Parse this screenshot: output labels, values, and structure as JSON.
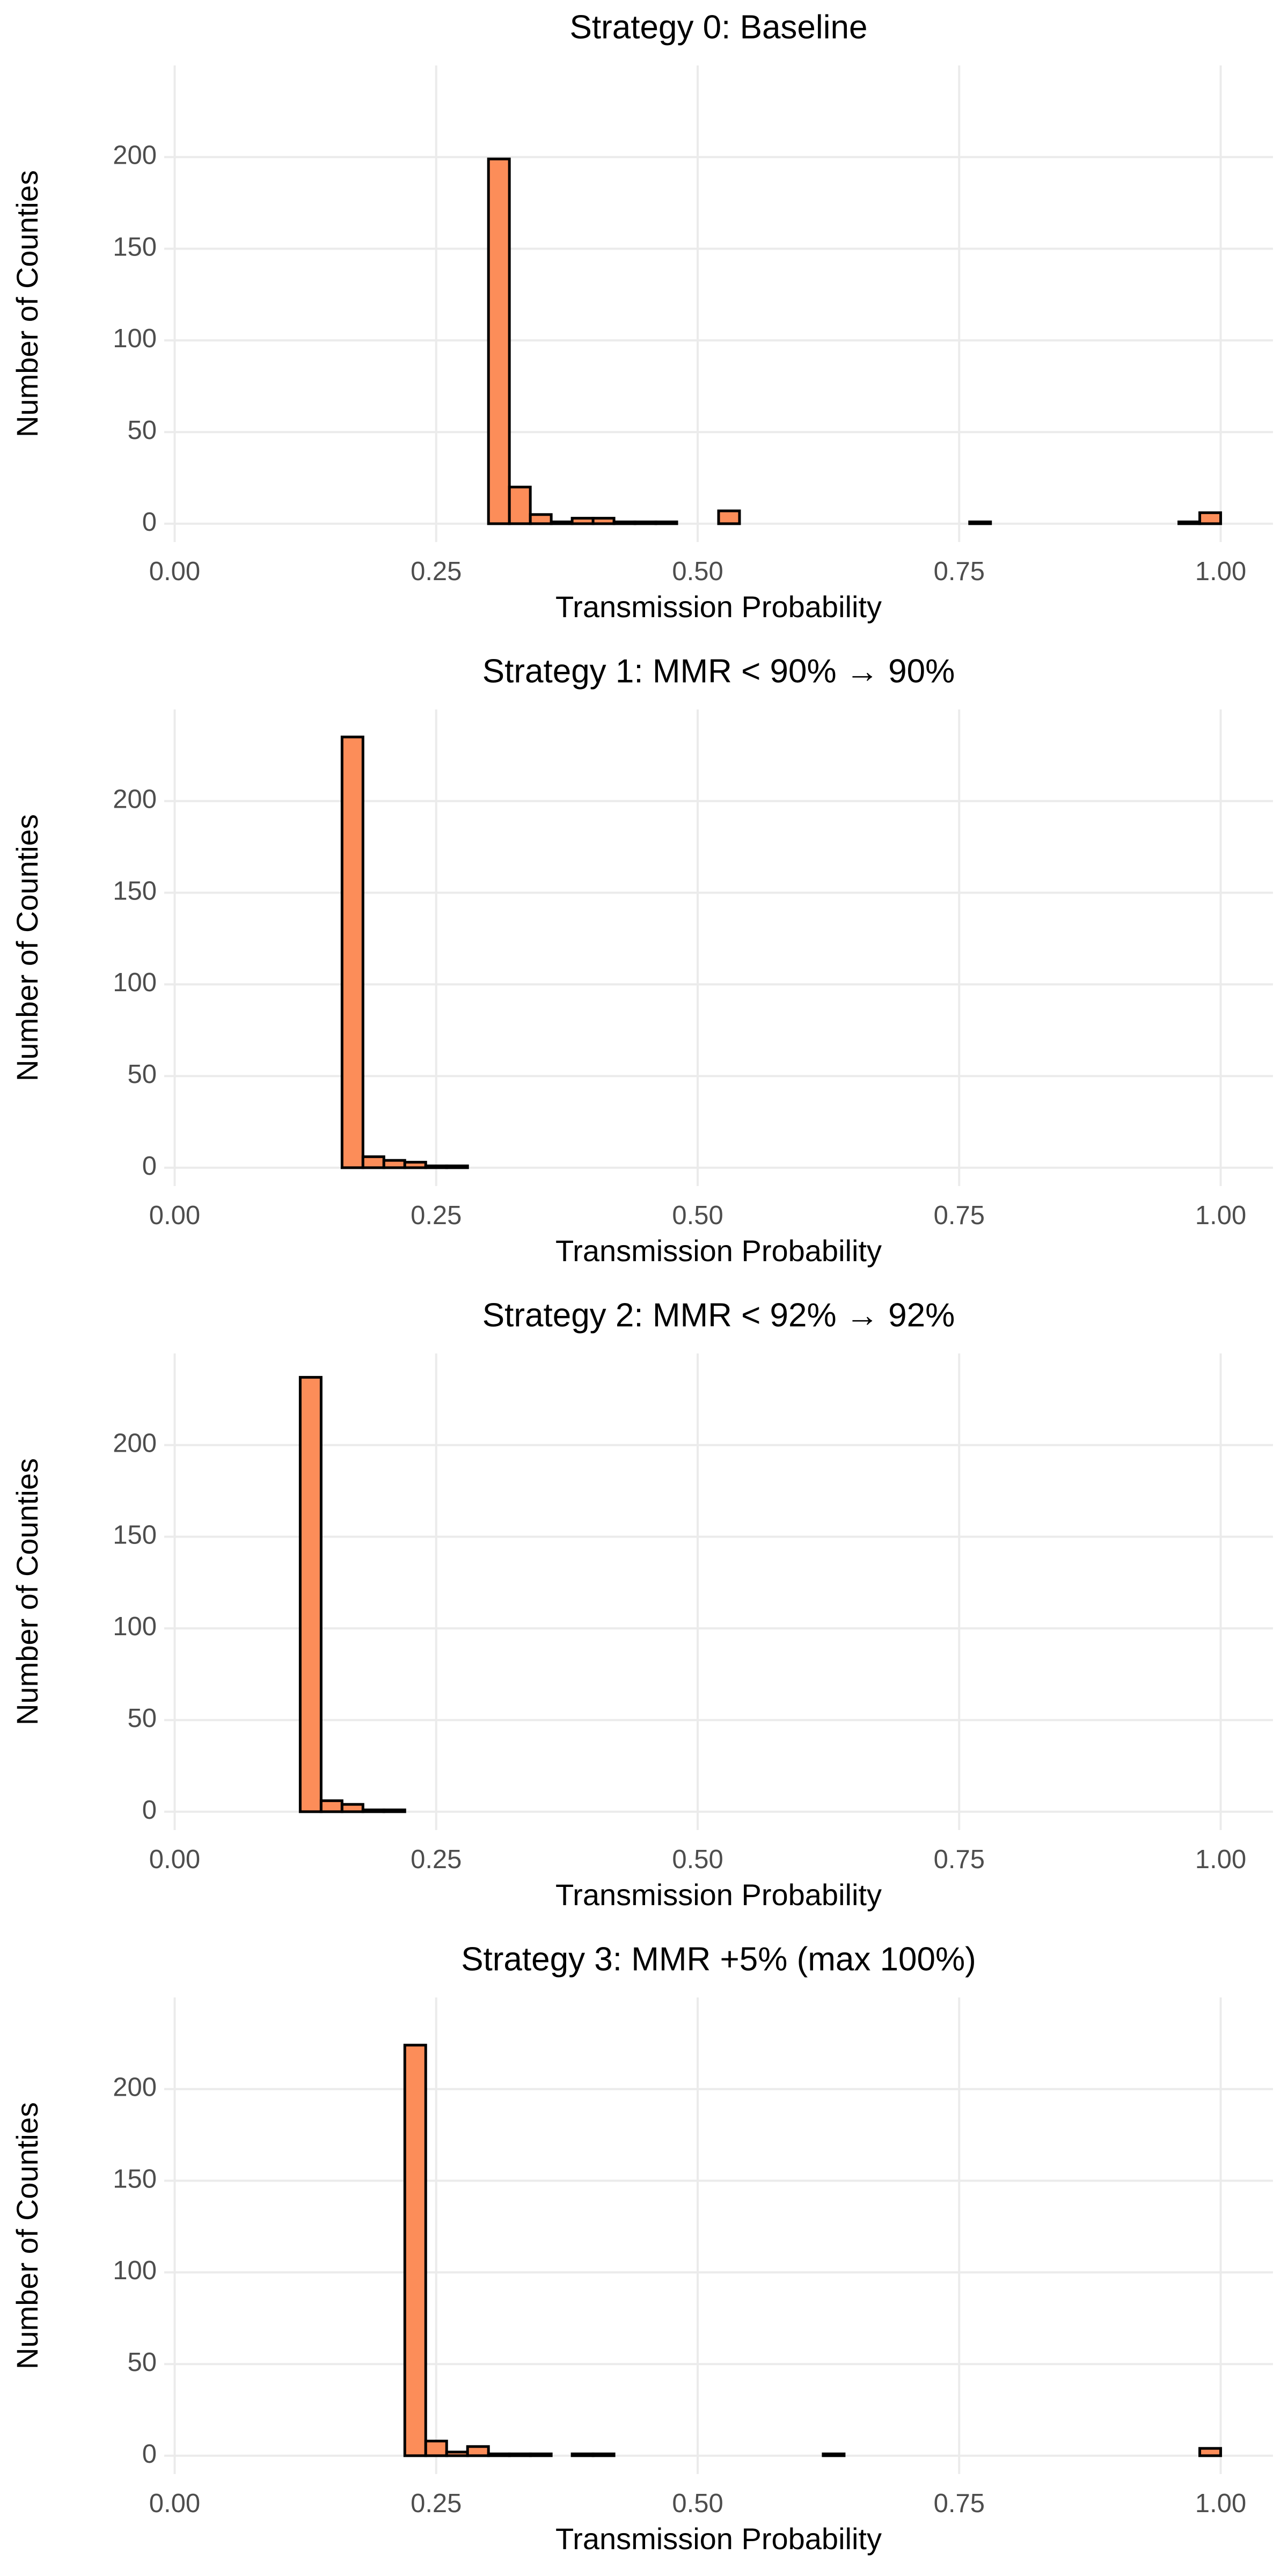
{
  "chart_data": [
    {
      "type": "histogram",
      "title": "Strategy 0: Baseline",
      "x_label": "Transmission Probability",
      "y_label": "Number of Counties",
      "bins": [
        0,
        0.02,
        0.04,
        0.06,
        0.08,
        0.1,
        0.12,
        0.14,
        0.16,
        0.18,
        0.2,
        0.22,
        0.24,
        0.26,
        0.28,
        0.3,
        0.32,
        0.34,
        0.36,
        0.38,
        0.4,
        0.42,
        0.44,
        0.46,
        0.48,
        0.5,
        0.52,
        0.54,
        0.56,
        0.58,
        0.6,
        0.62,
        0.64,
        0.66,
        0.68,
        0.7,
        0.72,
        0.74,
        0.76,
        0.78,
        0.8,
        0.82,
        0.84,
        0.86,
        0.88,
        0.9,
        0.92,
        0.94,
        0.96,
        0.98,
        1
      ],
      "counts": [
        0,
        0,
        0,
        0,
        0,
        0,
        0,
        0,
        0,
        0,
        0,
        0,
        0,
        0,
        0,
        199,
        20,
        5,
        1,
        3,
        3,
        1,
        1,
        1,
        0,
        0,
        7,
        0,
        0,
        0,
        0,
        0,
        0,
        0,
        0,
        0,
        0,
        0,
        1,
        0,
        0,
        0,
        0,
        0,
        0,
        0,
        0,
        0,
        1,
        6
      ],
      "color": "#fc8d59",
      "xlim": [
        -0.01,
        1.05
      ],
      "ylim": [
        -10,
        250
      ],
      "xticks": [
        {
          "value": 0,
          "label": "0.00"
        },
        0.25,
        {
          "value": 0.5,
          "label": "0.50"
        },
        0.75,
        {
          "value": 1,
          "label": "1.00"
        }
      ],
      "yticks": [
        0,
        50,
        100,
        150,
        200
      ],
      "grid": true
    },
    {
      "type": "histogram",
      "title": "Strategy 1: MMR < 90% → 90%",
      "x_label": "Transmission Probability",
      "y_label": "Number of Counties",
      "bins": [
        0,
        0.02,
        0.04,
        0.06,
        0.08,
        0.1,
        0.12,
        0.14,
        0.16,
        0.18,
        0.2,
        0.22,
        0.24,
        0.26,
        0.28,
        0.3,
        0.32,
        0.34,
        0.36,
        0.38,
        0.4,
        0.42,
        0.44,
        0.46,
        0.48,
        0.5,
        0.52,
        0.54,
        0.56,
        0.58,
        0.6,
        0.62,
        0.64,
        0.66,
        0.68,
        0.7,
        0.72,
        0.74,
        0.76,
        0.78,
        0.8,
        0.82,
        0.84,
        0.86,
        0.88,
        0.9,
        0.92,
        0.94,
        0.96,
        0.98,
        1
      ],
      "counts": [
        0,
        0,
        0,
        0,
        0,
        0,
        0,
        0,
        235,
        6,
        4,
        3,
        1,
        1,
        0,
        0,
        0,
        0,
        0,
        0,
        0,
        0,
        0,
        0,
        0,
        0,
        0,
        0,
        0,
        0,
        0,
        0,
        0,
        0,
        0,
        0,
        0,
        0,
        0,
        0,
        0,
        0,
        0,
        0,
        0,
        0,
        0,
        0,
        0,
        0
      ],
      "color": "#fc8d59",
      "xlim": [
        -0.01,
        1.05
      ],
      "ylim": [
        -10,
        250
      ],
      "xticks": [
        {
          "value": 0,
          "label": "0.00"
        },
        0.25,
        {
          "value": 0.5,
          "label": "0.50"
        },
        0.75,
        {
          "value": 1,
          "label": "1.00"
        }
      ],
      "yticks": [
        0,
        50,
        100,
        150,
        200
      ],
      "grid": true
    },
    {
      "type": "histogram",
      "title": "Strategy 2: MMR < 92% → 92%",
      "x_label": "Transmission Probability",
      "y_label": "Number of Counties",
      "bins": [
        0,
        0.02,
        0.04,
        0.06,
        0.08,
        0.1,
        0.12,
        0.14,
        0.16,
        0.18,
        0.2,
        0.22,
        0.24,
        0.26,
        0.28,
        0.3,
        0.32,
        0.34,
        0.36,
        0.38,
        0.4,
        0.42,
        0.44,
        0.46,
        0.48,
        0.5,
        0.52,
        0.54,
        0.56,
        0.58,
        0.6,
        0.62,
        0.64,
        0.66,
        0.68,
        0.7,
        0.72,
        0.74,
        0.76,
        0.78,
        0.8,
        0.82,
        0.84,
        0.86,
        0.88,
        0.9,
        0.92,
        0.94,
        0.96,
        0.98,
        1
      ],
      "counts": [
        0,
        0,
        0,
        0,
        0,
        0,
        237,
        6,
        4,
        1,
        1,
        0,
        0,
        0,
        0,
        0,
        0,
        0,
        0,
        0,
        0,
        0,
        0,
        0,
        0,
        0,
        0,
        0,
        0,
        0,
        0,
        0,
        0,
        0,
        0,
        0,
        0,
        0,
        0,
        0,
        0,
        0,
        0,
        0,
        0,
        0,
        0,
        0,
        0,
        0
      ],
      "color": "#fc8d59",
      "xlim": [
        -0.01,
        1.05
      ],
      "ylim": [
        -10,
        250
      ],
      "xticks": [
        {
          "value": 0,
          "label": "0.00"
        },
        0.25,
        {
          "value": 0.5,
          "label": "0.50"
        },
        0.75,
        {
          "value": 1,
          "label": "1.00"
        }
      ],
      "yticks": [
        0,
        50,
        100,
        150,
        200
      ],
      "grid": true
    },
    {
      "type": "histogram",
      "title": "Strategy 3: MMR +5% (max 100%)",
      "x_label": "Transmission Probability",
      "y_label": "Number of Counties",
      "bins": [
        0,
        0.02,
        0.04,
        0.06,
        0.08,
        0.1,
        0.12,
        0.14,
        0.16,
        0.18,
        0.2,
        0.22,
        0.24,
        0.26,
        0.28,
        0.3,
        0.32,
        0.34,
        0.36,
        0.38,
        0.4,
        0.42,
        0.44,
        0.46,
        0.48,
        0.5,
        0.52,
        0.54,
        0.56,
        0.58,
        0.6,
        0.62,
        0.64,
        0.66,
        0.68,
        0.7,
        0.72,
        0.74,
        0.76,
        0.78,
        0.8,
        0.82,
        0.84,
        0.86,
        0.88,
        0.9,
        0.92,
        0.94,
        0.96,
        0.98,
        1
      ],
      "counts": [
        0,
        0,
        0,
        0,
        0,
        0,
        0,
        0,
        0,
        0,
        0,
        224,
        8,
        2,
        5,
        1,
        1,
        1,
        0,
        1,
        1,
        0,
        0,
        0,
        0,
        0,
        0,
        0,
        0,
        0,
        0,
        1,
        0,
        0,
        0,
        0,
        0,
        0,
        0,
        0,
        0,
        0,
        0,
        0,
        0,
        0,
        0,
        0,
        0,
        4
      ],
      "color": "#fc8d59",
      "xlim": [
        -0.01,
        1.05
      ],
      "ylim": [
        -10,
        250
      ],
      "xticks": [
        {
          "value": 0,
          "label": "0.00"
        },
        0.25,
        {
          "value": 0.5,
          "label": "0.50"
        },
        0.75,
        {
          "value": 1,
          "label": "1.00"
        }
      ],
      "yticks": [
        0,
        50,
        100,
        150,
        200
      ],
      "grid": true
    }
  ]
}
